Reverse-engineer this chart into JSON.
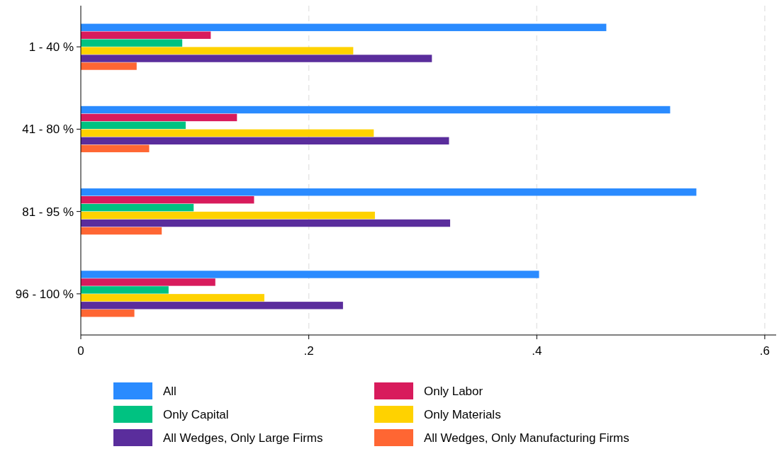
{
  "chart_data": {
    "type": "bar",
    "orientation": "horizontal",
    "categories": [
      "1 - 40 %",
      "41 - 80 %",
      "81 - 95 %",
      "96 - 100 %"
    ],
    "series": [
      {
        "name": "All",
        "color": "#2a8bff",
        "values": [
          0.461,
          0.517,
          0.54,
          0.402
        ]
      },
      {
        "name": "Only Labor",
        "color": "#d81b5c",
        "values": [
          0.114,
          0.137,
          0.152,
          0.118
        ]
      },
      {
        "name": "Only Capital",
        "color": "#00c281",
        "values": [
          0.089,
          0.092,
          0.099,
          0.077
        ]
      },
      {
        "name": "Only Materials",
        "color": "#ffd200",
        "values": [
          0.239,
          0.257,
          0.258,
          0.161
        ]
      },
      {
        "name": "All Wedges, Only Large Firms",
        "color": "#5a2d9c",
        "values": [
          0.308,
          0.323,
          0.324,
          0.23
        ]
      },
      {
        "name": "All Wedges, Only Manufacturing Firms",
        "color": "#ff6633",
        "values": [
          0.049,
          0.06,
          0.071,
          0.047
        ]
      }
    ],
    "xlim": [
      0,
      0.61
    ],
    "xticks": [
      {
        "value": 0,
        "label": "0"
      },
      {
        "value": 0.2,
        "label": ".2"
      },
      {
        "value": 0.4,
        "label": ".4"
      },
      {
        "value": 0.6,
        "label": ".6"
      }
    ],
    "grid": "x",
    "legend": "bottom"
  }
}
